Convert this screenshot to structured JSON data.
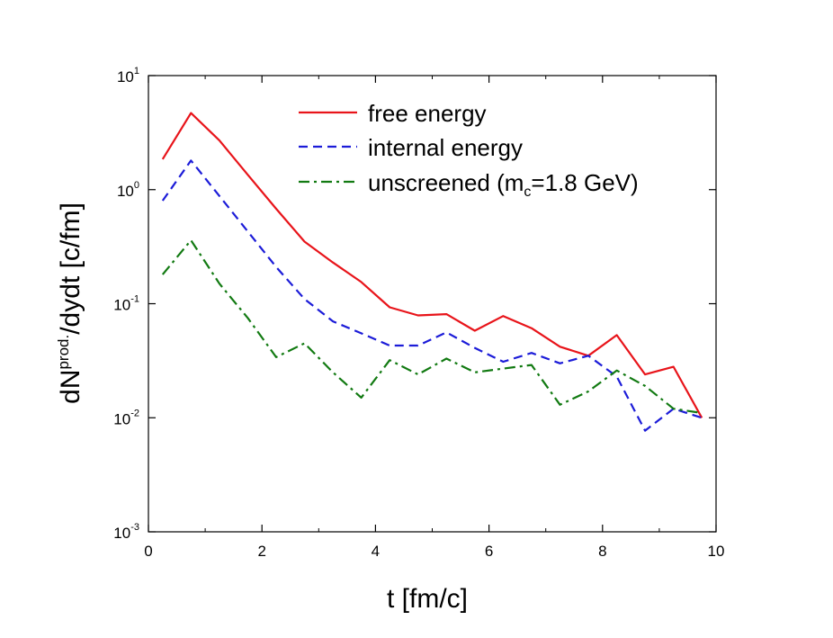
{
  "chart_data": {
    "type": "line",
    "xlabel": "t [fm/c]",
    "ylabel": {
      "base": "dN",
      "sup": "prod.",
      "rest": "/dydt [c/fm]"
    },
    "xlim": [
      0,
      10
    ],
    "ylim": [
      0.001,
      10
    ],
    "yscale": "log",
    "xticks": [
      0,
      2,
      4,
      6,
      8,
      10
    ],
    "xtick_labels": [
      "0",
      "2",
      "4",
      "6",
      "8",
      "10"
    ],
    "yticks": [
      0.001,
      0.01,
      0.1,
      1,
      10
    ],
    "ytick_labels": [
      {
        "base": "10",
        "exp": "-3"
      },
      {
        "base": "10",
        "exp": "-2"
      },
      {
        "base": "10",
        "exp": "-1"
      },
      {
        "base": "10",
        "exp": "0"
      },
      {
        "base": "10",
        "exp": "1"
      }
    ],
    "legend_position": "top-center",
    "grid": false,
    "x": [
      0.25,
      0.75,
      1.25,
      1.75,
      2.25,
      2.75,
      3.25,
      3.75,
      4.25,
      4.75,
      5.25,
      5.75,
      6.25,
      6.75,
      7.25,
      7.75,
      8.25,
      8.75,
      9.25,
      9.75
    ],
    "series": [
      {
        "name": "free energy",
        "color": "#e8141a",
        "dash": "solid",
        "values": [
          1.85,
          4.7,
          2.7,
          1.35,
          0.68,
          0.35,
          0.23,
          0.155,
          0.093,
          0.079,
          0.081,
          0.058,
          0.078,
          0.061,
          0.042,
          0.035,
          0.053,
          0.024,
          0.028,
          0.01
        ]
      },
      {
        "name": "internal energy",
        "color": "#1c1cd8",
        "dash": "dashed",
        "values": [
          0.8,
          1.8,
          0.88,
          0.43,
          0.21,
          0.11,
          0.07,
          0.055,
          0.043,
          0.043,
          0.056,
          0.041,
          0.031,
          0.037,
          0.03,
          0.035,
          0.023,
          0.0077,
          0.012,
          0.01
        ]
      },
      {
        "name": {
          "base": "unscreened (m",
          "sub": "c",
          "rest": "=1.8 GeV)"
        },
        "color": "#127a12",
        "dash": "dashdot",
        "values": [
          0.18,
          0.36,
          0.15,
          0.075,
          0.034,
          0.045,
          0.025,
          0.015,
          0.032,
          0.024,
          0.033,
          0.025,
          0.027,
          0.029,
          0.013,
          0.017,
          0.026,
          0.019,
          0.012,
          0.011
        ]
      }
    ]
  }
}
